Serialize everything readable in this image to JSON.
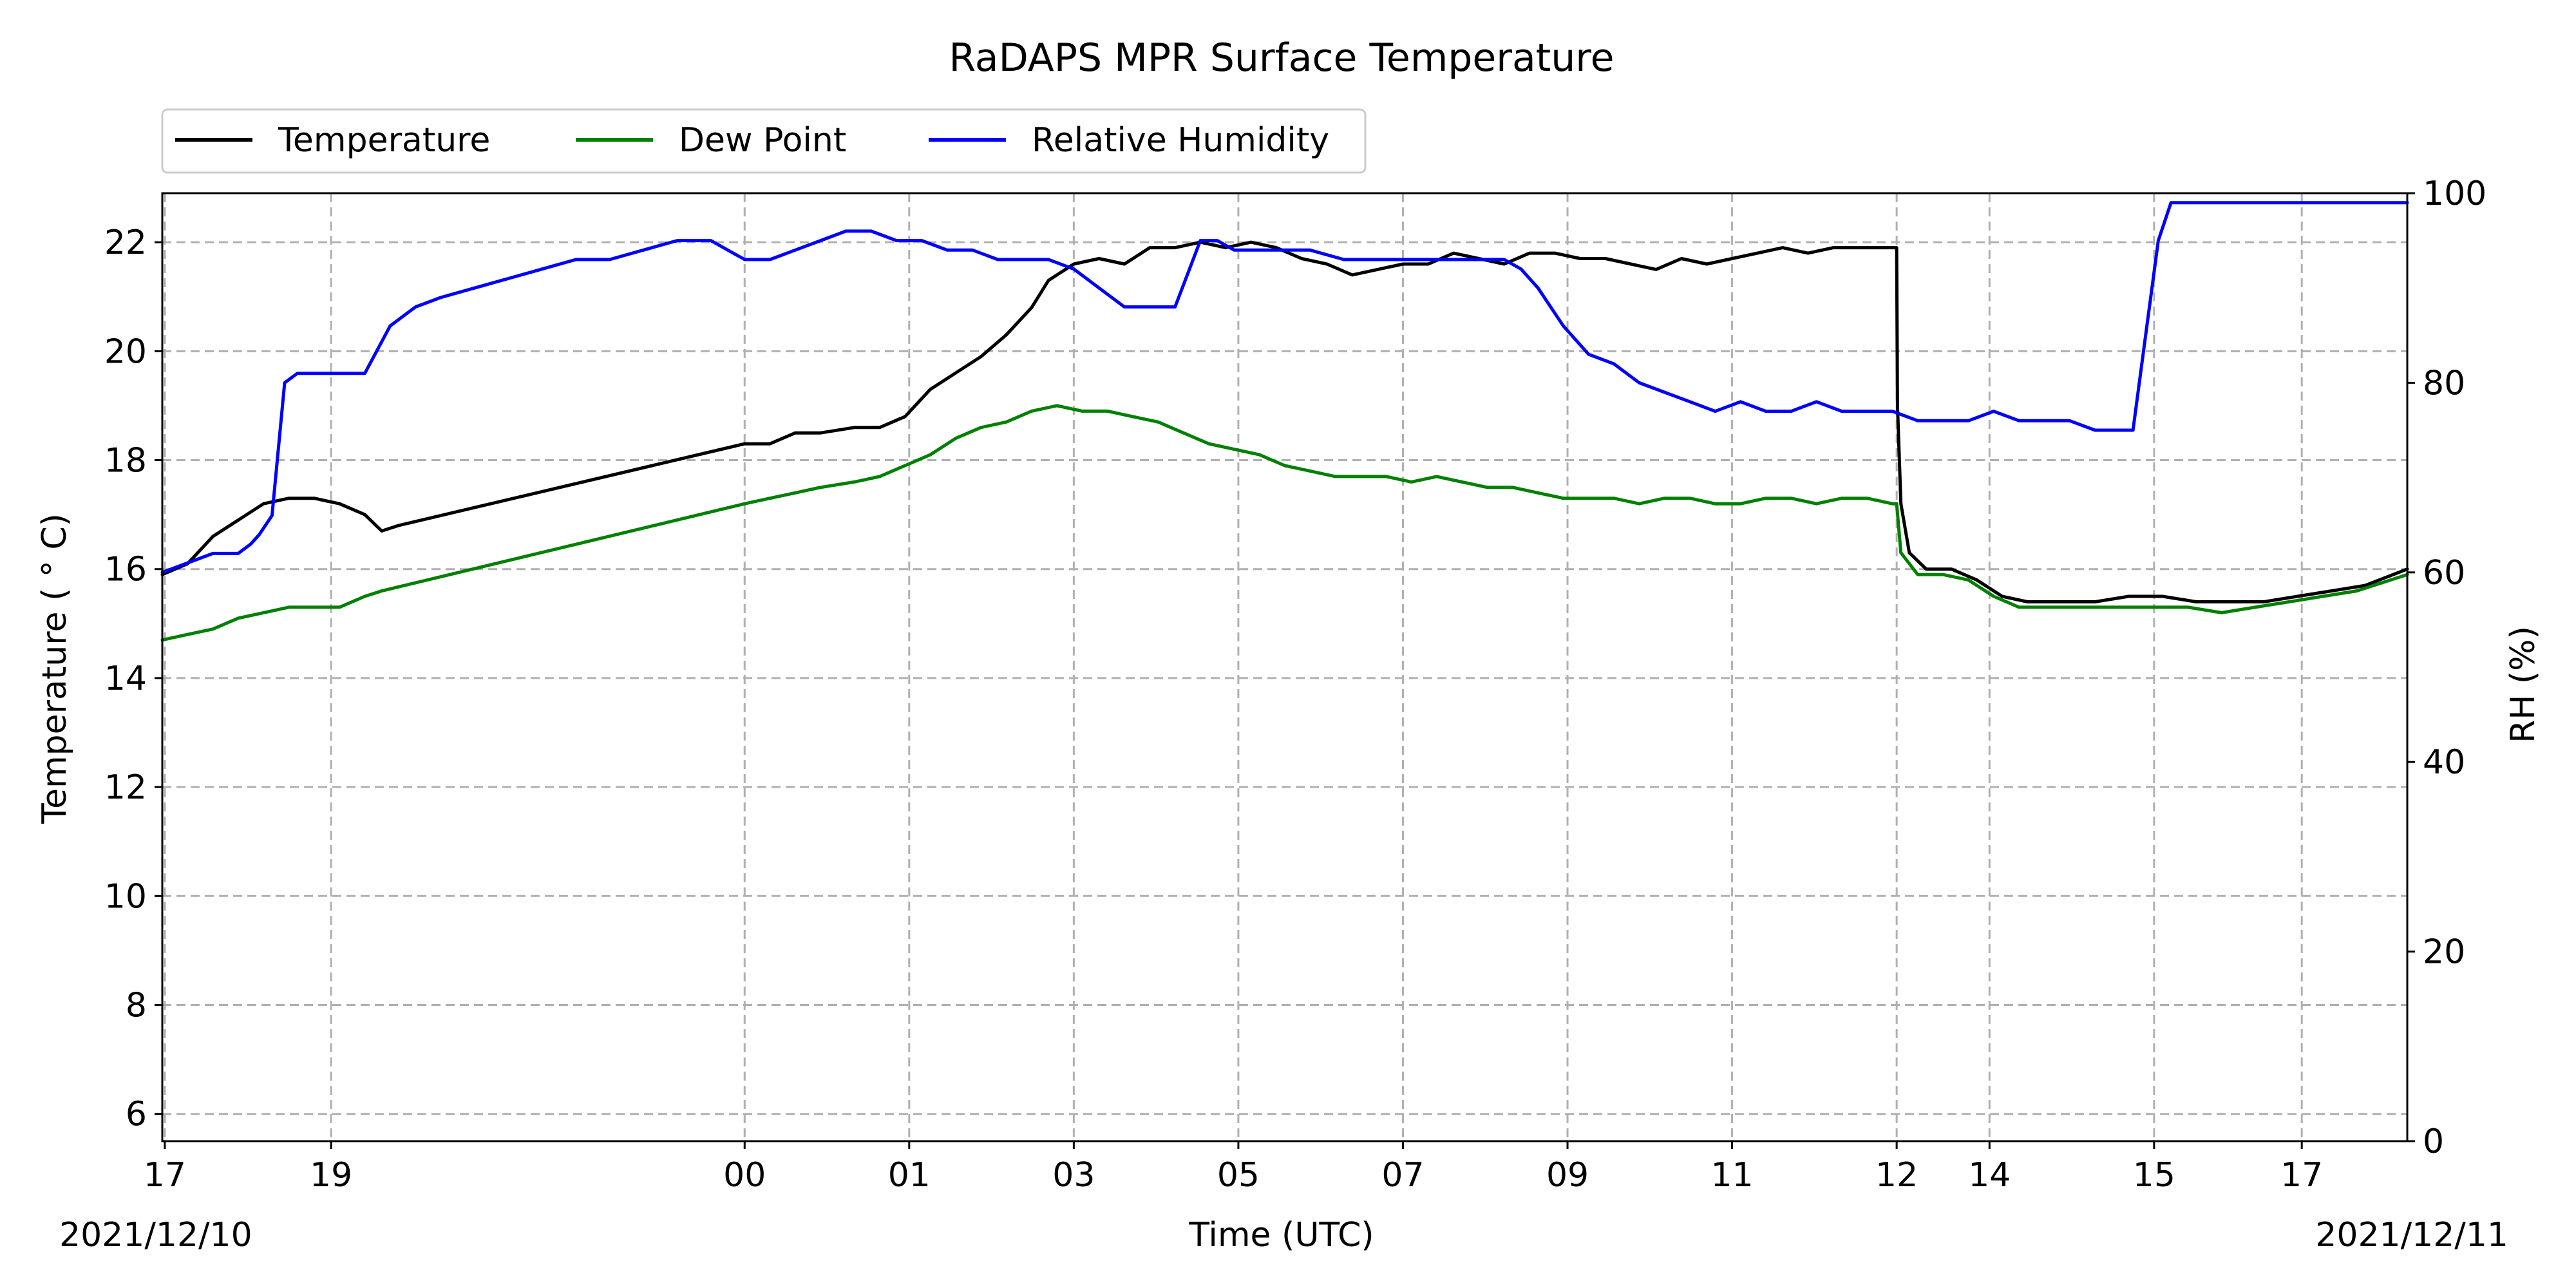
{
  "chart_data": {
    "type": "line",
    "title": "RaDAPS MPR Surface Temperature",
    "xlabel": "Time (UTC)",
    "ylabel": "Temperature ($^\\circ$C)",
    "ylabel_display": "Temperature ( ° C)",
    "y2label": "RH (%)",
    "ylim": [
      5.5,
      22.9
    ],
    "y2lim": [
      0,
      100
    ],
    "grid": true,
    "legend_position": "top-left",
    "x_tick_labels": [
      "17",
      "19",
      "00",
      "01",
      "03",
      "05",
      "07",
      "09",
      "11",
      "12",
      "14",
      "15",
      "17"
    ],
    "x_tick_hours": [
      17.03,
      19.0,
      23.9,
      25.85,
      27.8,
      29.75,
      31.7,
      33.65,
      35.6,
      37.55,
      38.65,
      40.6,
      42.35
    ],
    "xlim_hours": [
      17.0,
      43.6
    ],
    "date_start": "2021/12/10",
    "date_end": "2021/12/11",
    "y_ticks": [
      6,
      8,
      10,
      12,
      14,
      16,
      18,
      20,
      22
    ],
    "y2_ticks": [
      0,
      20,
      40,
      60,
      80,
      100
    ],
    "series": [
      {
        "name": "Temperature",
        "color": "#000000",
        "axis": "left",
        "x": [
          17.0,
          17.3,
          17.6,
          17.9,
          18.2,
          18.5,
          18.8,
          19.1,
          19.4,
          19.6,
          19.8,
          23.9,
          24.2,
          24.5,
          24.8,
          25.2,
          25.5,
          25.8,
          26.1,
          26.4,
          26.7,
          27.0,
          27.3,
          27.5,
          27.8,
          28.1,
          28.4,
          28.7,
          29.0,
          29.3,
          29.6,
          29.9,
          30.2,
          30.5,
          30.8,
          31.1,
          31.4,
          31.7,
          32.0,
          32.3,
          32.6,
          32.9,
          33.2,
          33.5,
          33.8,
          34.1,
          34.4,
          34.7,
          35.0,
          35.3,
          35.6,
          35.9,
          36.2,
          36.5,
          36.8,
          37.1,
          37.4,
          37.55,
          37.56,
          37.6,
          37.7,
          37.9,
          38.2,
          38.5,
          38.8,
          39.1,
          39.5,
          39.9,
          40.3,
          40.7,
          41.1,
          41.5,
          41.9,
          42.3,
          42.7,
          43.1,
          43.6
        ],
        "values": [
          15.9,
          16.1,
          16.6,
          16.9,
          17.2,
          17.3,
          17.3,
          17.2,
          17.0,
          16.7,
          16.8,
          18.3,
          18.3,
          18.5,
          18.5,
          18.6,
          18.6,
          18.8,
          19.3,
          19.6,
          19.9,
          20.3,
          20.8,
          21.3,
          21.6,
          21.7,
          21.6,
          21.9,
          21.9,
          22.0,
          21.9,
          22.0,
          21.9,
          21.7,
          21.6,
          21.4,
          21.5,
          21.6,
          21.6,
          21.8,
          21.7,
          21.6,
          21.8,
          21.8,
          21.7,
          21.7,
          21.6,
          21.5,
          21.7,
          21.6,
          21.7,
          21.8,
          21.9,
          21.8,
          21.9,
          21.9,
          21.9,
          21.9,
          19.0,
          17.2,
          16.3,
          16.0,
          16.0,
          15.8,
          15.5,
          15.4,
          15.4,
          15.4,
          15.5,
          15.5,
          15.4,
          15.4,
          15.4,
          15.5,
          15.6,
          15.7,
          16.0
        ]
      },
      {
        "name": "Dew Point",
        "color": "#008000",
        "axis": "left",
        "x": [
          17.0,
          17.3,
          17.6,
          17.9,
          18.2,
          18.5,
          18.8,
          19.1,
          19.4,
          19.6,
          23.9,
          24.2,
          24.5,
          24.8,
          25.2,
          25.5,
          25.8,
          26.1,
          26.4,
          26.7,
          27.0,
          27.3,
          27.6,
          27.9,
          28.2,
          28.5,
          28.8,
          29.1,
          29.4,
          29.7,
          30.0,
          30.3,
          30.6,
          30.9,
          31.2,
          31.5,
          31.8,
          32.1,
          32.4,
          32.7,
          33.0,
          33.3,
          33.6,
          33.9,
          34.2,
          34.5,
          34.8,
          35.1,
          35.4,
          35.7,
          36.0,
          36.3,
          36.6,
          36.9,
          37.2,
          37.5,
          37.55,
          37.6,
          37.8,
          38.1,
          38.4,
          38.7,
          39.0,
          39.4,
          39.8,
          40.2,
          40.6,
          41.0,
          41.4,
          41.8,
          42.2,
          42.6,
          43.0,
          43.6
        ],
        "values": [
          14.7,
          14.8,
          14.9,
          15.1,
          15.2,
          15.3,
          15.3,
          15.3,
          15.5,
          15.6,
          17.2,
          17.3,
          17.4,
          17.5,
          17.6,
          17.7,
          17.9,
          18.1,
          18.4,
          18.6,
          18.7,
          18.9,
          19.0,
          18.9,
          18.9,
          18.8,
          18.7,
          18.5,
          18.3,
          18.2,
          18.1,
          17.9,
          17.8,
          17.7,
          17.7,
          17.7,
          17.6,
          17.7,
          17.6,
          17.5,
          17.5,
          17.4,
          17.3,
          17.3,
          17.3,
          17.2,
          17.3,
          17.3,
          17.2,
          17.2,
          17.3,
          17.3,
          17.2,
          17.3,
          17.3,
          17.2,
          17.2,
          16.3,
          15.9,
          15.9,
          15.8,
          15.5,
          15.3,
          15.3,
          15.3,
          15.3,
          15.3,
          15.3,
          15.2,
          15.3,
          15.4,
          15.5,
          15.6,
          15.9
        ]
      },
      {
        "name": "Relative Humidity",
        "color": "#0000ff",
        "axis": "right",
        "x": [
          17.0,
          17.3,
          17.6,
          17.9,
          18.05,
          18.15,
          18.3,
          18.45,
          18.6,
          18.9,
          19.2,
          19.4,
          19.7,
          20.0,
          20.3,
          20.7,
          21.1,
          21.5,
          21.9,
          22.3,
          22.7,
          23.1,
          23.5,
          23.9,
          24.2,
          24.5,
          24.8,
          25.1,
          25.4,
          25.7,
          26.0,
          26.3,
          26.6,
          26.9,
          27.2,
          27.5,
          27.8,
          28.1,
          28.4,
          28.7,
          29.0,
          29.3,
          29.5,
          29.7,
          29.9,
          30.2,
          30.6,
          31.0,
          31.4,
          31.8,
          32.2,
          32.6,
          32.9,
          33.1,
          33.3,
          33.6,
          33.9,
          34.2,
          34.5,
          34.8,
          35.1,
          35.4,
          35.7,
          36.0,
          36.3,
          36.6,
          36.9,
          37.2,
          37.5,
          37.8,
          38.1,
          38.4,
          38.7,
          39.0,
          39.3,
          39.6,
          39.9,
          40.2,
          40.35,
          40.5,
          40.65,
          40.8,
          41.5,
          42.5,
          43.6
        ],
        "values": [
          60,
          61,
          62,
          62,
          63,
          64,
          66,
          80,
          81,
          81,
          81,
          81,
          86,
          88,
          89,
          90,
          91,
          92,
          93,
          93,
          94,
          95,
          95,
          93,
          93,
          94,
          95,
          96,
          96,
          95,
          95,
          94,
          94,
          93,
          93,
          93,
          92,
          90,
          88,
          88,
          88,
          95,
          95,
          94,
          94,
          94,
          94,
          93,
          93,
          93,
          93,
          93,
          93,
          92,
          90,
          86,
          83,
          82,
          80,
          79,
          78,
          77,
          78,
          77,
          77,
          78,
          77,
          77,
          77,
          76,
          76,
          76,
          77,
          76,
          76,
          76,
          75,
          75,
          75,
          85,
          95,
          99,
          99,
          99,
          99
        ]
      }
    ]
  }
}
